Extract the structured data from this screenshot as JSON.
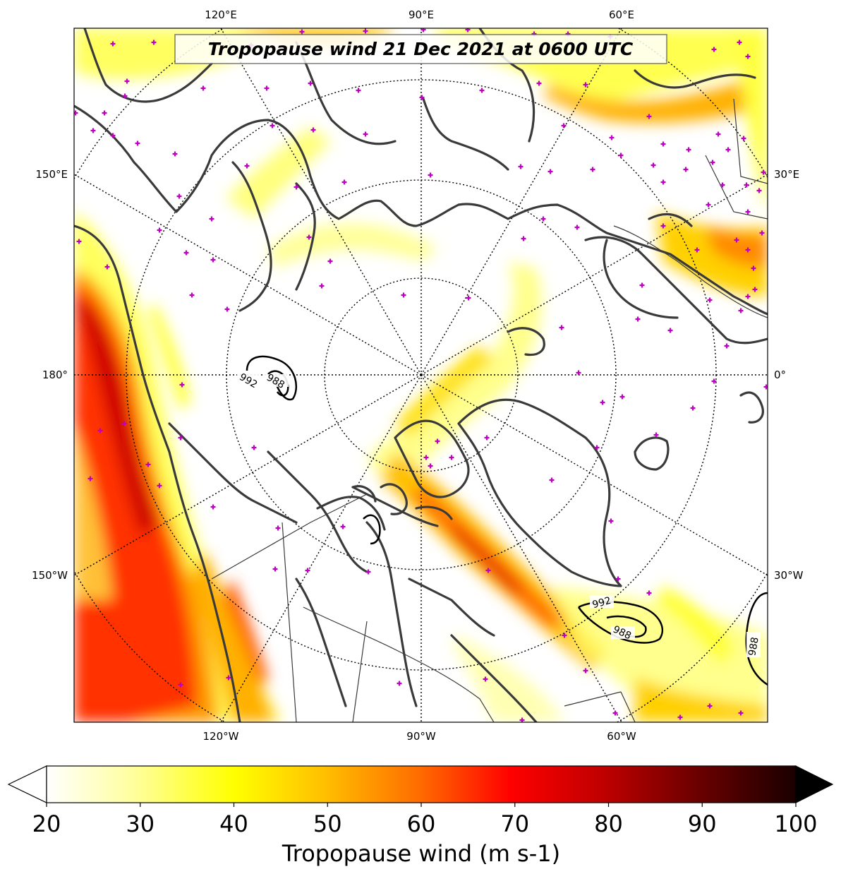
{
  "title": "Tropopause wind 21 Dec 2021 at 0600 UTC",
  "map": {
    "projection": "north-polar-stereographic",
    "center_longitude": "90°W at bottom",
    "colormap": "hot_r",
    "land_color": "#3a3a3a",
    "station_marker_color": "#c000c0",
    "top_lon_labels": [
      "120°E",
      "90°E",
      "60°E"
    ],
    "bottom_lon_labels": [
      "120°W",
      "90°W",
      "60°W"
    ],
    "left_lon_labels": [
      "150°E",
      "180°",
      "150°W"
    ],
    "right_lon_labels": [
      "30°E",
      "0°",
      "30°W"
    ],
    "pressure_contours": [
      {
        "label_outer": "992",
        "label_inner": "988",
        "location": "Beaufort Sea / East Siberian Sea"
      },
      {
        "label_outer": "992",
        "label_inner": "988",
        "location": "south of Greenland"
      },
      {
        "label_inner": "988",
        "location": "east of Iceland"
      }
    ]
  },
  "colorbar": {
    "label": "Tropopause wind (m s-1)",
    "min": 20,
    "max": 100,
    "ticks": [
      "20",
      "30",
      "40",
      "50",
      "60",
      "70",
      "80",
      "90",
      "100"
    ],
    "extend": "both"
  }
}
